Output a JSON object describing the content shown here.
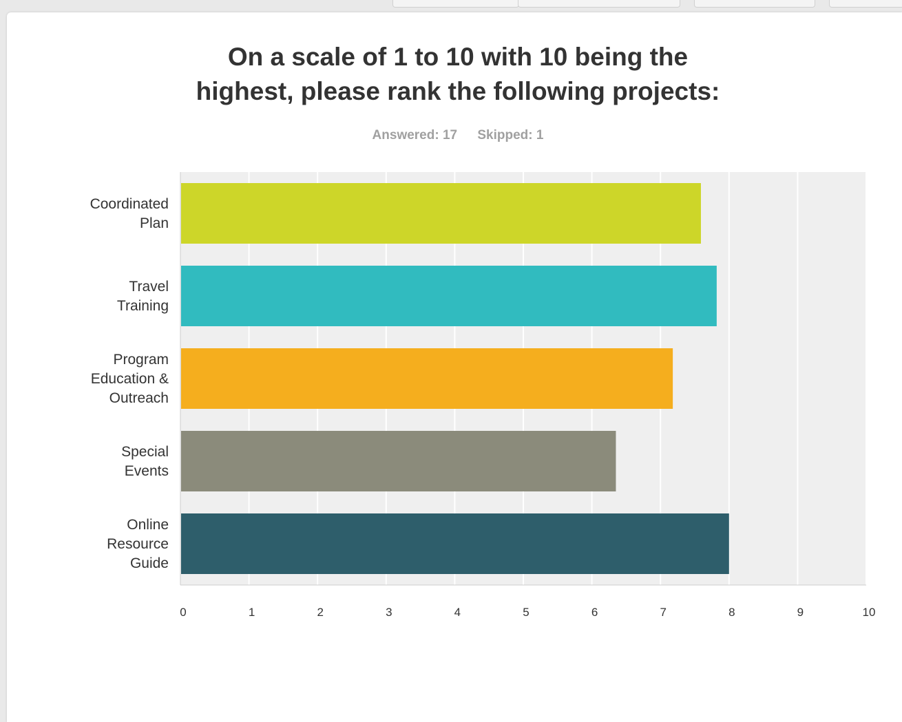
{
  "question": {
    "title_lines": [
      "On a scale of 1 to 10 with 10 being the",
      "highest, please rank the following projects:"
    ],
    "answered": "Answered: 17",
    "skipped": "Skipped: 1"
  },
  "chart_data": {
    "type": "bar",
    "orientation": "horizontal",
    "categories": [
      [
        "Coordinated",
        "Plan"
      ],
      [
        "Travel",
        "Training"
      ],
      [
        "Program",
        "Education &",
        "Outreach"
      ],
      [
        "Special",
        "Events"
      ],
      [
        "Online",
        "Resource",
        "Guide"
      ]
    ],
    "values": [
      7.59,
      7.82,
      7.18,
      6.35,
      8.0
    ],
    "colors": [
      "#cdd629",
      "#31bbbf",
      "#f5ae1e",
      "#8b8b7b",
      "#2e5e6b"
    ],
    "xlim": [
      0,
      10
    ],
    "xticks": [
      0,
      1,
      2,
      3,
      4,
      5,
      6,
      7,
      8,
      9,
      10
    ],
    "grid": true,
    "legend": "none"
  }
}
